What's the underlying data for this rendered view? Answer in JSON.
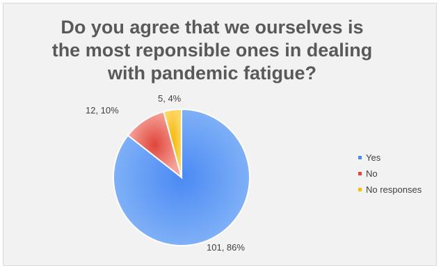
{
  "chart_data": {
    "type": "pie",
    "title": "Do you agree that we ourselves is\nthe most reponsible ones in dealing\nwith pandemic fatigue?",
    "slices": [
      {
        "name": "Yes",
        "value": 101,
        "percent": 86,
        "label": "101, 86%",
        "color": "#4a8af4"
      },
      {
        "name": "No",
        "value": 12,
        "percent": 10,
        "label": "12, 10%",
        "color": "#ea4335"
      },
      {
        "name": "No responses",
        "value": 5,
        "percent": 4,
        "label": "5, 4%",
        "color": "#fbbc04"
      }
    ],
    "legend_placement": "right",
    "start": "12 o'clock, clockwise"
  }
}
